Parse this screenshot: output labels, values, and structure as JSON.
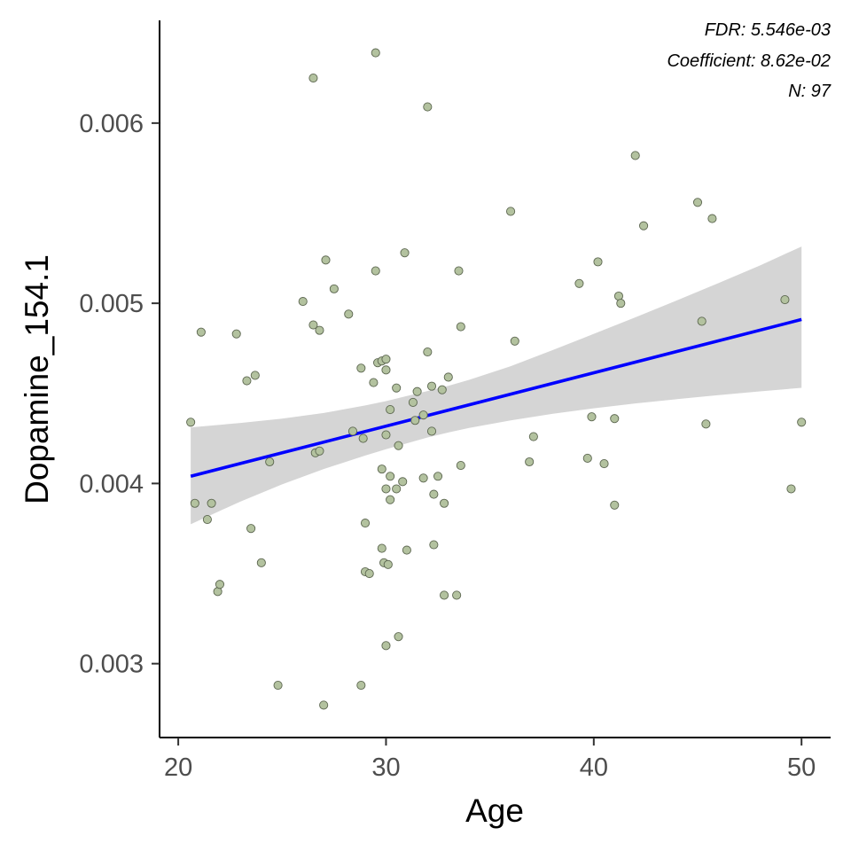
{
  "chart_data": {
    "type": "scatter",
    "title": "",
    "xlabel": "Age",
    "ylabel": "Dopamine_154.1",
    "xlim": [
      19.1,
      51.4
    ],
    "ylim": [
      0.00259,
      0.00657
    ],
    "x_ticks": [
      20,
      30,
      40,
      50
    ],
    "x_tick_labels": [
      "20",
      "30",
      "40",
      "50"
    ],
    "y_ticks": [
      0.003,
      0.004,
      0.005,
      0.006
    ],
    "y_tick_labels": [
      "0.003",
      "0.004",
      "0.005",
      "0.006"
    ],
    "grid": false,
    "annotations": [
      "FDR: 5.546e-03",
      "Coefficient: 8.62e-02",
      "N: 97"
    ],
    "points": [
      [
        20.6,
        0.00434
      ],
      [
        20.8,
        0.00389
      ],
      [
        21.1,
        0.00484
      ],
      [
        21.4,
        0.0038
      ],
      [
        21.6,
        0.00389
      ],
      [
        21.9,
        0.0034
      ],
      [
        22.0,
        0.00344
      ],
      [
        22.8,
        0.00483
      ],
      [
        23.3,
        0.00457
      ],
      [
        23.5,
        0.00375
      ],
      [
        23.7,
        0.0046
      ],
      [
        24.0,
        0.00356
      ],
      [
        24.4,
        0.00412
      ],
      [
        24.8,
        0.00288
      ],
      [
        26.0,
        0.00501
      ],
      [
        26.5,
        0.00625
      ],
      [
        26.5,
        0.00488
      ],
      [
        26.6,
        0.00417
      ],
      [
        26.8,
        0.00485
      ],
      [
        26.8,
        0.00418
      ],
      [
        27.0,
        0.00277
      ],
      [
        27.1,
        0.00524
      ],
      [
        27.5,
        0.00508
      ],
      [
        28.2,
        0.00494
      ],
      [
        28.4,
        0.00429
      ],
      [
        28.8,
        0.00288
      ],
      [
        28.8,
        0.00464
      ],
      [
        28.9,
        0.00425
      ],
      [
        29.0,
        0.00378
      ],
      [
        29.0,
        0.00351
      ],
      [
        29.2,
        0.0035
      ],
      [
        29.4,
        0.00456
      ],
      [
        29.5,
        0.00639
      ],
      [
        29.5,
        0.00518
      ],
      [
        29.6,
        0.00467
      ],
      [
        29.8,
        0.00468
      ],
      [
        29.8,
        0.00408
      ],
      [
        29.8,
        0.00364
      ],
      [
        29.9,
        0.00356
      ],
      [
        30.0,
        0.00469
      ],
      [
        30.0,
        0.00463
      ],
      [
        30.0,
        0.00427
      ],
      [
        30.0,
        0.00397
      ],
      [
        30.0,
        0.0031
      ],
      [
        30.1,
        0.00355
      ],
      [
        30.2,
        0.00404
      ],
      [
        30.2,
        0.00391
      ],
      [
        30.2,
        0.00441
      ],
      [
        30.5,
        0.00453
      ],
      [
        30.5,
        0.00397
      ],
      [
        30.6,
        0.00421
      ],
      [
        30.6,
        0.00315
      ],
      [
        30.8,
        0.00401
      ],
      [
        30.9,
        0.00528
      ],
      [
        31.0,
        0.00363
      ],
      [
        31.3,
        0.00445
      ],
      [
        31.4,
        0.00435
      ],
      [
        31.5,
        0.00451
      ],
      [
        31.8,
        0.00438
      ],
      [
        31.8,
        0.00403
      ],
      [
        32.0,
        0.00473
      ],
      [
        32.0,
        0.00609
      ],
      [
        32.2,
        0.00429
      ],
      [
        32.2,
        0.00454
      ],
      [
        32.3,
        0.00394
      ],
      [
        32.3,
        0.00366
      ],
      [
        32.5,
        0.00404
      ],
      [
        32.7,
        0.00452
      ],
      [
        32.8,
        0.00389
      ],
      [
        32.8,
        0.00338
      ],
      [
        33.0,
        0.00459
      ],
      [
        33.4,
        0.00338
      ],
      [
        33.5,
        0.00518
      ],
      [
        33.6,
        0.00487
      ],
      [
        33.6,
        0.0041
      ],
      [
        36.0,
        0.00551
      ],
      [
        36.2,
        0.00479
      ],
      [
        36.9,
        0.00412
      ],
      [
        37.1,
        0.00426
      ],
      [
        39.3,
        0.00511
      ],
      [
        39.7,
        0.00414
      ],
      [
        39.9,
        0.00437
      ],
      [
        40.2,
        0.00523
      ],
      [
        40.5,
        0.00411
      ],
      [
        41.0,
        0.00436
      ],
      [
        41.0,
        0.00388
      ],
      [
        41.2,
        0.00504
      ],
      [
        41.3,
        0.005
      ],
      [
        42.0,
        0.00582
      ],
      [
        42.4,
        0.00543
      ],
      [
        45.0,
        0.00556
      ],
      [
        45.2,
        0.0049
      ],
      [
        45.4,
        0.00433
      ],
      [
        45.7,
        0.00547
      ],
      [
        49.2,
        0.00502
      ],
      [
        49.5,
        0.00397
      ],
      [
        50.0,
        0.00434
      ]
    ],
    "fit_line": {
      "x": [
        20.6,
        50.0
      ],
      "y": [
        0.00404,
        0.00491
      ]
    },
    "ci_band": {
      "x": [
        20.6,
        23.0,
        25.0,
        27.0,
        29.0,
        30.0,
        31.0,
        32.0,
        33.0,
        34.0,
        36.0,
        38.0,
        40.0,
        42.0,
        44.0,
        46.0,
        48.0,
        50.0
      ],
      "lower": [
        0.003774,
        0.0039,
        0.003995,
        0.00408,
        0.004155,
        0.00419,
        0.004223,
        0.004255,
        0.004283,
        0.004308,
        0.00435,
        0.004386,
        0.004417,
        0.004444,
        0.004468,
        0.00449,
        0.004511,
        0.004531
      ],
      "upper": [
        0.004311,
        0.004336,
        0.00436,
        0.004391,
        0.004433,
        0.004457,
        0.004485,
        0.004513,
        0.004542,
        0.004575,
        0.004651,
        0.004739,
        0.00483,
        0.004922,
        0.005016,
        0.005112,
        0.00521,
        0.005315
      ]
    },
    "colors": {
      "point_fill": "#b3c29f",
      "point_stroke": "#5c6650",
      "fit_line": "#0000ff",
      "ci_fill": "#d5d5d5",
      "axis": "#000000",
      "tick_label": "#4d4d4d"
    }
  }
}
